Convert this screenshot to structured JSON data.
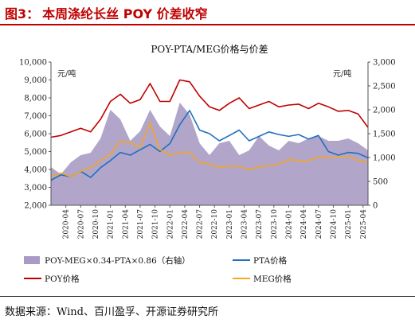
{
  "figure": {
    "number_label": "图3：",
    "title": "本周涤纶长丝 POY 价差收窄",
    "source": "数据来源：Wind、百川盈孚、开源证券研究所"
  },
  "colors": {
    "header": "#c00000",
    "poy": "#c00000",
    "pta": "#1f6fbf",
    "meg": "#f5a623",
    "spread": "#a99bc4"
  },
  "chart_data": {
    "type": "line",
    "title": "POY-PTA/MEG价格与价差",
    "left_unit": "元/吨",
    "right_unit": "元/吨",
    "x_ticks": [
      "2020-04",
      "2020-07",
      "2020-10",
      "2021-01",
      "2021-04",
      "2021-07",
      "2021-10",
      "2022-01",
      "2022-04",
      "2022-07",
      "2022-10",
      "2023-01",
      "2023-04",
      "2023-07",
      "2023-10",
      "2024-01",
      "2024-04",
      "2024-07",
      "2024-10",
      "2025-01",
      "2025-04"
    ],
    "y_left": {
      "min": 2000,
      "max": 10000,
      "ticks": [
        "2,000",
        "3,000",
        "4,000",
        "5,000",
        "6,000",
        "7,000",
        "8,000",
        "9,000",
        "10,000"
      ]
    },
    "y_right": {
      "min": 0,
      "max": 3000,
      "ticks": [
        "0",
        "500",
        "1,000",
        "1,500",
        "2,000",
        "2,500",
        "3,000"
      ]
    },
    "x": [
      "2020-01",
      "2020-03",
      "2020-05",
      "2020-07",
      "2020-09",
      "2020-11",
      "2021-01",
      "2021-03",
      "2021-05",
      "2021-07",
      "2021-09",
      "2021-11",
      "2022-01",
      "2022-03",
      "2022-05",
      "2022-07",
      "2022-09",
      "2022-11",
      "2023-01",
      "2023-03",
      "2023-05",
      "2023-07",
      "2023-09",
      "2023-11",
      "2024-01",
      "2024-03",
      "2024-05",
      "2024-07",
      "2024-09",
      "2024-11",
      "2025-01",
      "2025-03",
      "2025-05"
    ],
    "series": [
      {
        "name": "POY-MEG×0.34-PTA×0.86（右轴）",
        "type": "area",
        "axis": "right",
        "values": [
          800,
          650,
          900,
          1050,
          1100,
          1400,
          2000,
          1800,
          1350,
          1550,
          2000,
          1650,
          1450,
          2150,
          1900,
          1300,
          1050,
          1300,
          1350,
          1050,
          1150,
          1450,
          1250,
          1150,
          1350,
          1300,
          1400,
          1450,
          1350,
          1350,
          1400,
          1300,
          1150
        ]
      },
      {
        "name": "PTA价格",
        "type": "line",
        "axis": "left",
        "values": [
          3400,
          3700,
          3600,
          3900,
          3550,
          4100,
          4500,
          4950,
          4800,
          5100,
          5400,
          5000,
          5450,
          6500,
          7300,
          6200,
          6000,
          5600,
          5900,
          6200,
          5600,
          5850,
          6100,
          5950,
          5850,
          5950,
          5700,
          5900,
          5000,
          4800,
          4950,
          4900,
          4650
        ]
      },
      {
        "name": "POY价格",
        "type": "line",
        "axis": "left",
        "values": [
          5800,
          5900,
          6100,
          6300,
          6100,
          6800,
          7800,
          8200,
          7700,
          7900,
          8800,
          7800,
          7800,
          9000,
          8900,
          8100,
          7500,
          7300,
          7700,
          8000,
          7400,
          7600,
          7800,
          7500,
          7600,
          7650,
          7400,
          7700,
          7500,
          7250,
          7300,
          7100,
          6350
        ]
      },
      {
        "name": "MEG价格",
        "type": "line",
        "axis": "left",
        "values": [
          3600,
          3800,
          3600,
          3900,
          4100,
          4500,
          4850,
          5600,
          5500,
          5250,
          6600,
          5100,
          4800,
          4950,
          4950,
          4400,
          4300,
          4100,
          4200,
          4150,
          4000,
          4150,
          4200,
          4300,
          4550,
          4500,
          4500,
          4700,
          4650,
          4700,
          4750,
          4500,
          4400
        ]
      }
    ],
    "legend": [
      {
        "label": "POY-MEG×0.34-PTA×0.86（右轴）",
        "key": "spread",
        "style": "box"
      },
      {
        "label": "PTA价格",
        "key": "pta",
        "style": "line"
      },
      {
        "label": "POY价格",
        "key": "poy",
        "style": "line"
      },
      {
        "label": "MEG价格",
        "key": "meg",
        "style": "line"
      }
    ],
    "legend_position": "bottom",
    "grid": false
  }
}
